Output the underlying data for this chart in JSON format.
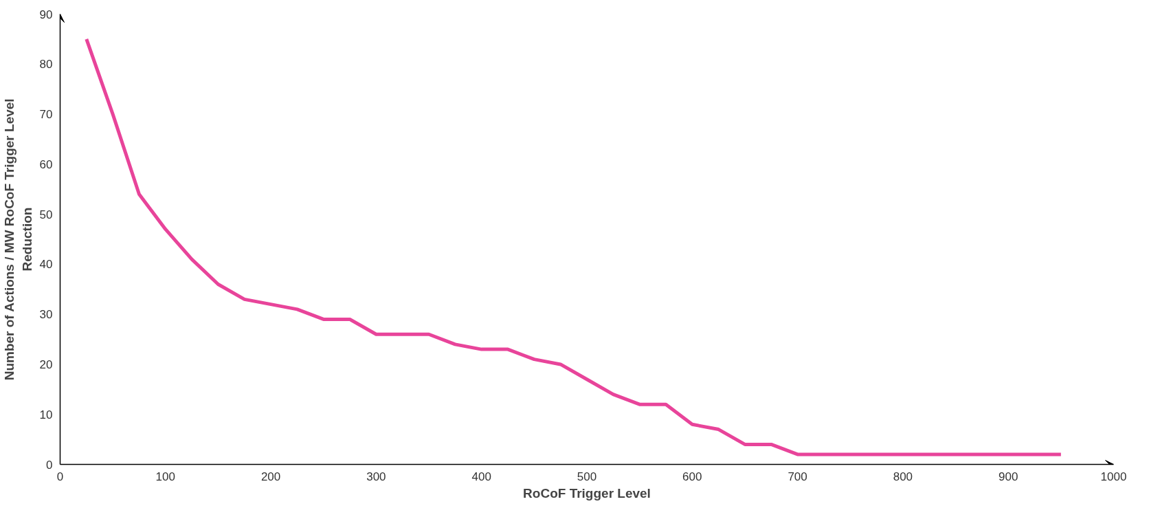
{
  "chart_data": {
    "type": "line",
    "xlabel": "RoCoF Trigger Level",
    "ylabel": "Number of Actions / MW RoCoF Trigger Level Reduction",
    "x": [
      25,
      50,
      75,
      100,
      125,
      150,
      175,
      200,
      225,
      250,
      275,
      300,
      325,
      350,
      375,
      400,
      425,
      450,
      475,
      500,
      525,
      550,
      575,
      600,
      625,
      650,
      675,
      700,
      725,
      750,
      775,
      800,
      825,
      850,
      875,
      900,
      925,
      950
    ],
    "series": [
      {
        "color": "#e8449a",
        "values": [
          85,
          70,
          54,
          47,
          41,
          36,
          33,
          32,
          31,
          29,
          29,
          26,
          26,
          26,
          24,
          23,
          23,
          21,
          20,
          17,
          14,
          12,
          12,
          8,
          7,
          4,
          4,
          2,
          2,
          2,
          2,
          2,
          2,
          2,
          2,
          2,
          2,
          2
        ]
      }
    ],
    "xlim": [
      0,
      1000
    ],
    "xticks": [
      0,
      100,
      200,
      300,
      400,
      500,
      600,
      700,
      800,
      900,
      1000
    ],
    "ylim": [
      0,
      90
    ],
    "yticks": [
      0,
      10,
      20,
      30,
      40,
      50,
      60,
      70,
      80,
      90
    ],
    "grid": false,
    "marker": "none",
    "line_style": "solid"
  }
}
